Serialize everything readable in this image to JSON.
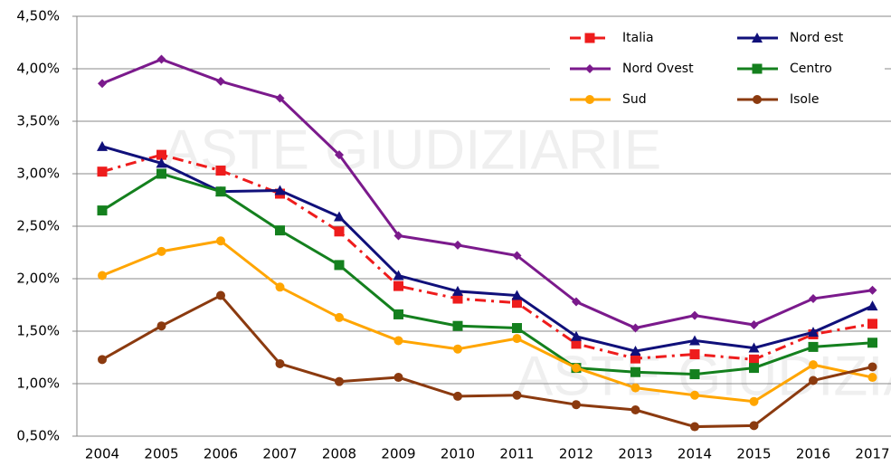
{
  "chart_data": {
    "type": "line",
    "watermark": "ASTE GIUDIZIARIE",
    "categories": [
      "2004",
      "2005",
      "2006",
      "2007",
      "2008",
      "2009",
      "2010",
      "2011",
      "2012",
      "2013",
      "2014",
      "2015",
      "2016",
      "2017"
    ],
    "ylim": [
      0.5,
      4.5
    ],
    "yticks": [
      {
        "value": 0.5,
        "label": "0,50%"
      },
      {
        "value": 1.0,
        "label": "1,00%"
      },
      {
        "value": 1.5,
        "label": "1,50%"
      },
      {
        "value": 2.0,
        "label": "2,00%"
      },
      {
        "value": 2.5,
        "label": "2,50%"
      },
      {
        "value": 3.0,
        "label": "3,00%"
      },
      {
        "value": 3.5,
        "label": "3,50%"
      },
      {
        "value": 4.0,
        "label": "4,00%"
      },
      {
        "value": 4.5,
        "label": "4,50%"
      }
    ],
    "grid": true,
    "legend": "top-right",
    "series": [
      {
        "name": "Italia",
        "color": "#ee1c1c",
        "marker": "square",
        "dash": true,
        "values": [
          3.02,
          3.18,
          3.03,
          2.81,
          2.45,
          1.93,
          1.81,
          1.77,
          1.38,
          1.24,
          1.28,
          1.23,
          1.47,
          1.57
        ]
      },
      {
        "name": "Nord est",
        "color": "#10107a",
        "marker": "triangle",
        "dash": false,
        "values": [
          3.26,
          3.1,
          2.83,
          2.84,
          2.59,
          2.03,
          1.88,
          1.84,
          1.45,
          1.31,
          1.41,
          1.34,
          1.49,
          1.74
        ]
      },
      {
        "name": "Nord Ovest",
        "color": "#7b1a8c",
        "marker": "diamond",
        "dash": false,
        "values": [
          3.86,
          4.09,
          3.88,
          3.72,
          3.18,
          2.41,
          2.32,
          2.22,
          1.78,
          1.53,
          1.65,
          1.56,
          1.81,
          1.89
        ]
      },
      {
        "name": "Centro",
        "color": "#14801e",
        "marker": "square",
        "dash": false,
        "values": [
          2.65,
          3.0,
          2.83,
          2.46,
          2.13,
          1.66,
          1.55,
          1.53,
          1.15,
          1.11,
          1.09,
          1.15,
          1.35,
          1.39
        ]
      },
      {
        "name": "Sud",
        "color": "#ffa500",
        "marker": "circle",
        "dash": false,
        "values": [
          2.03,
          2.26,
          2.36,
          1.92,
          1.63,
          1.41,
          1.33,
          1.43,
          1.15,
          0.96,
          0.89,
          0.83,
          1.18,
          1.06
        ]
      },
      {
        "name": "Isole",
        "color": "#8b3a0f",
        "marker": "circle",
        "dash": false,
        "values": [
          1.23,
          1.55,
          1.84,
          1.19,
          1.02,
          1.06,
          0.88,
          0.89,
          0.8,
          0.75,
          0.59,
          0.6,
          1.03,
          1.16
        ]
      }
    ]
  }
}
